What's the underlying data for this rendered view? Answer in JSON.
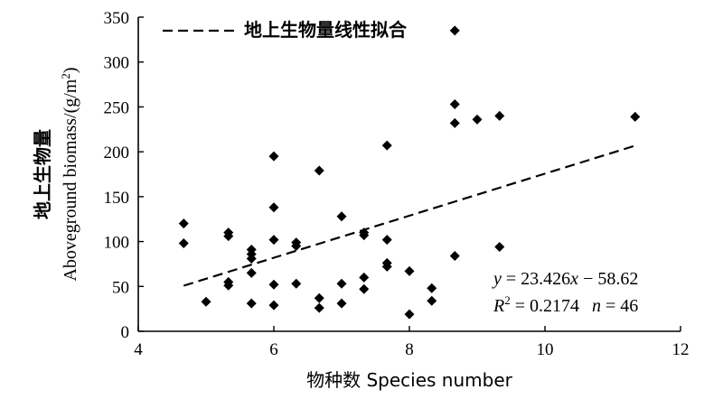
{
  "chart_data": {
    "type": "scatter",
    "xlabel": "物种数 Species number",
    "ylabel_cn": "地上生物量",
    "ylabel_en_pre": "Aboveground biomass/(g/m",
    "ylabel_en_sup": "2",
    "ylabel_en_post": ")",
    "xlim": [
      4,
      12
    ],
    "ylim": [
      0,
      350
    ],
    "x_ticks": [
      "4",
      "6",
      "8",
      "10",
      "12"
    ],
    "y_ticks": [
      "0",
      "50",
      "100",
      "150",
      "200",
      "250",
      "300",
      "350"
    ],
    "grid": false,
    "legend": {
      "position": "top-left",
      "label": "地上生物量线性拟合",
      "style": "dashed"
    },
    "fit": {
      "slope": 23.426,
      "intercept": -58.62,
      "x_range": [
        4.67,
        11.33
      ]
    },
    "annotation_eq": {
      "y": "y",
      "eq1": " = 23.426",
      "x": "x",
      "eq2": " − 58.62"
    },
    "annotation_stats": {
      "r": "R",
      "r_sup": "2",
      "r_val": " = 0.2174",
      "n": "n",
      "n_val": " = 46"
    },
    "points": [
      {
        "x": 4.67,
        "y": 120
      },
      {
        "x": 4.67,
        "y": 98
      },
      {
        "x": 5.0,
        "y": 33
      },
      {
        "x": 5.33,
        "y": 110
      },
      {
        "x": 5.33,
        "y": 106
      },
      {
        "x": 5.33,
        "y": 55
      },
      {
        "x": 5.33,
        "y": 51
      },
      {
        "x": 5.67,
        "y": 91
      },
      {
        "x": 5.67,
        "y": 86
      },
      {
        "x": 5.67,
        "y": 81
      },
      {
        "x": 5.67,
        "y": 65
      },
      {
        "x": 5.67,
        "y": 31
      },
      {
        "x": 6.0,
        "y": 195
      },
      {
        "x": 6.0,
        "y": 138
      },
      {
        "x": 6.0,
        "y": 102
      },
      {
        "x": 6.0,
        "y": 52
      },
      {
        "x": 6.0,
        "y": 29
      },
      {
        "x": 6.33,
        "y": 99
      },
      {
        "x": 6.33,
        "y": 95
      },
      {
        "x": 6.33,
        "y": 53
      },
      {
        "x": 6.67,
        "y": 179
      },
      {
        "x": 6.67,
        "y": 37
      },
      {
        "x": 6.67,
        "y": 26
      },
      {
        "x": 7.0,
        "y": 128
      },
      {
        "x": 7.0,
        "y": 53
      },
      {
        "x": 7.0,
        "y": 31
      },
      {
        "x": 7.33,
        "y": 110
      },
      {
        "x": 7.33,
        "y": 107
      },
      {
        "x": 7.33,
        "y": 60
      },
      {
        "x": 7.33,
        "y": 47
      },
      {
        "x": 7.67,
        "y": 207
      },
      {
        "x": 7.67,
        "y": 102
      },
      {
        "x": 7.67,
        "y": 76
      },
      {
        "x": 7.67,
        "y": 72
      },
      {
        "x": 8.0,
        "y": 67
      },
      {
        "x": 8.0,
        "y": 19
      },
      {
        "x": 8.33,
        "y": 48
      },
      {
        "x": 8.33,
        "y": 34
      },
      {
        "x": 8.67,
        "y": 335
      },
      {
        "x": 8.67,
        "y": 253
      },
      {
        "x": 8.67,
        "y": 232
      },
      {
        "x": 8.67,
        "y": 84
      },
      {
        "x": 9.0,
        "y": 236
      },
      {
        "x": 9.33,
        "y": 240
      },
      {
        "x": 9.33,
        "y": 94
      },
      {
        "x": 11.33,
        "y": 239
      }
    ]
  }
}
